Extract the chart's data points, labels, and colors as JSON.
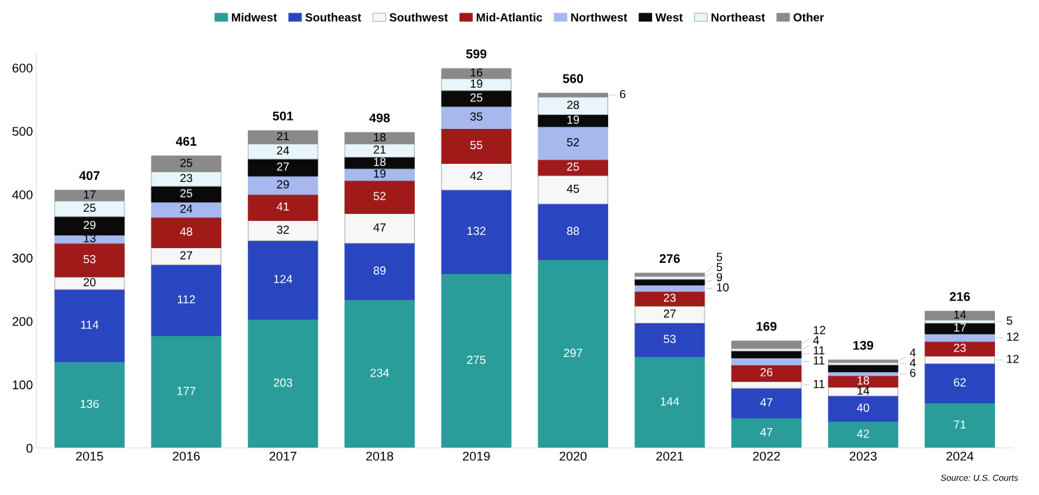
{
  "chart_data": {
    "type": "bar",
    "stacked": true,
    "categories": [
      "2015",
      "2016",
      "2017",
      "2018",
      "2019",
      "2020",
      "2021",
      "2022",
      "2023",
      "2024"
    ],
    "series": [
      {
        "name": "Midwest",
        "color": "#2a9d9a",
        "values": [
          136,
          177,
          203,
          234,
          275,
          297,
          144,
          47,
          42,
          71
        ],
        "value_labels": [
          "136",
          "177",
          "203",
          "234",
          "275",
          "297",
          "144",
          "47",
          "42",
          "71"
        ]
      },
      {
        "name": "Southeast",
        "color": "#2a45c0",
        "values": [
          114,
          112,
          124,
          89,
          132,
          88,
          53,
          47,
          40,
          62
        ],
        "value_labels": [
          "114",
          "112",
          "124",
          "89",
          "132",
          "88",
          "53",
          "47",
          "40",
          "62"
        ]
      },
      {
        "name": "Southwest",
        "color": "#f7f7f7",
        "values": [
          20,
          27,
          32,
          47,
          42,
          45,
          27,
          11,
          14,
          12
        ],
        "value_labels": [
          "20",
          "27",
          "32",
          "47",
          "42",
          "45",
          "27",
          "11",
          "14",
          "12"
        ]
      },
      {
        "name": "Mid-Atlantic",
        "color": "#a01a1a",
        "values": [
          53,
          48,
          41,
          52,
          55,
          25,
          23,
          26,
          18,
          23
        ],
        "value_labels": [
          "53",
          "48",
          "41",
          "52",
          "55",
          "25",
          "23",
          "26",
          "18",
          "23"
        ]
      },
      {
        "name": "Northwest",
        "color": "#a6b8ee",
        "values": [
          13,
          24,
          29,
          19,
          35,
          52,
          10,
          11,
          6,
          12
        ],
        "value_labels": [
          "13",
          "24",
          "29",
          "19",
          "35",
          "52",
          "10",
          "11",
          "6",
          "12"
        ]
      },
      {
        "name": "West",
        "color": "#0a0a0a",
        "values": [
          29,
          25,
          27,
          18,
          25,
          19,
          9,
          11,
          11,
          17
        ],
        "value_labels": [
          "29",
          "25",
          "27",
          "18",
          "25",
          "19",
          "9",
          "11",
          null,
          "17"
        ]
      },
      {
        "name": "Northeast",
        "color": "#e8f6fb",
        "values": [
          25,
          23,
          24,
          21,
          19,
          28,
          5,
          4,
          4,
          5
        ],
        "value_labels": [
          "25",
          "23",
          "24",
          "21",
          "19",
          "28",
          "5",
          "4",
          "4",
          "5"
        ]
      },
      {
        "name": "Other",
        "color": "#8a8a8a",
        "values": [
          17,
          25,
          21,
          18,
          16,
          6,
          5,
          12,
          4,
          14
        ],
        "value_labels": [
          "17",
          "25",
          "21",
          "18",
          "16",
          "6",
          "5",
          "12",
          "4",
          "14"
        ]
      }
    ],
    "totals": [
      "407",
      "461",
      "501",
      "498",
      "599",
      "560",
      "276",
      "169",
      "139",
      "216"
    ],
    "ylim": [
      0,
      625
    ],
    "yticks": [
      0,
      100,
      200,
      300,
      400,
      500,
      600
    ],
    "grid": false,
    "legend": "top",
    "annotations": [
      "Source: U.S. Courts"
    ]
  }
}
